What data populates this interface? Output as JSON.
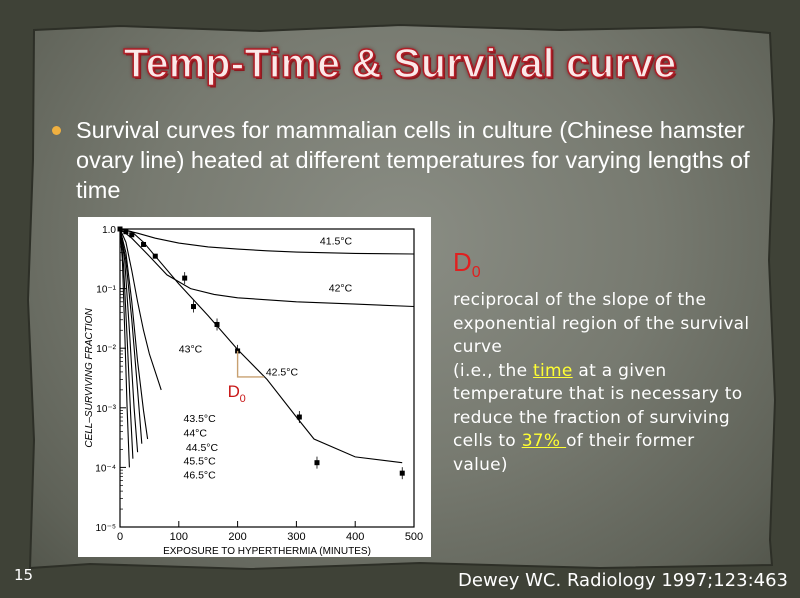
{
  "slide": {
    "title": "Temp-Time & Survival curve",
    "bullet": "Survival curves for mammalian cells in culture (Chinese hamster ovary line) heated at different temperatures for varying lengths of time",
    "page_number": "15",
    "citation": "Dewey WC. Radiology 1997;123:463"
  },
  "sidebar": {
    "d0_letter": "D",
    "d0_sub": "0",
    "line1": "reciprocal of the slope of the exponential region of the survival curve",
    "line2_pre": "(i.e., the ",
    "line2_hl": "time",
    "line2_post": " at a given temperature that is necessary to reduce the fraction of surviving cells to ",
    "line3_hl": "37% ",
    "line3_post": "of their former value)"
  },
  "colors": {
    "title_fill": "#fbe9e9",
    "title_outline": "#b11d26",
    "bullet": "#f0b040",
    "d0_red": "#e02020",
    "highlight": "#ffff33"
  },
  "chart_data": {
    "type": "line",
    "xlabel": "EXPOSURE TO HYPERTHERMIA (MINUTES)",
    "ylabel": "CELL–SURVIVING FRACTION",
    "xlim": [
      0,
      500
    ],
    "ylim": [
      1e-05,
      1
    ],
    "yscale": "log",
    "x_ticks": [
      0,
      100,
      200,
      300,
      400,
      500
    ],
    "y_ticks": [
      {
        "value": 1.0,
        "label": "1.0"
      },
      {
        "value": 0.1,
        "label": "10⁻¹"
      },
      {
        "value": 0.01,
        "label": "10⁻²"
      },
      {
        "value": 0.001,
        "label": "10⁻³"
      },
      {
        "value": 0.0001,
        "label": "10⁻⁴"
      },
      {
        "value": 1e-05,
        "label": "10⁻⁵"
      }
    ],
    "series": [
      {
        "name": "41.5°C",
        "x": [
          0,
          30,
          60,
          100,
          150,
          200,
          250,
          300,
          400,
          500
        ],
        "y": [
          1,
          0.85,
          0.7,
          0.58,
          0.5,
          0.46,
          0.43,
          0.41,
          0.39,
          0.38
        ],
        "label_at": [
          340,
          0.55
        ]
      },
      {
        "name": "42°C",
        "x": [
          0,
          20,
          50,
          80,
          120,
          160,
          200,
          300,
          400,
          500
        ],
        "y": [
          1,
          0.7,
          0.35,
          0.17,
          0.1,
          0.08,
          0.07,
          0.06,
          0.055,
          0.05
        ],
        "label_at": [
          355,
          0.09
        ]
      },
      {
        "name": "43°C",
        "x": [
          0,
          10,
          20,
          30,
          40,
          50,
          60,
          70
        ],
        "y": [
          1,
          0.6,
          0.2,
          0.06,
          0.02,
          0.008,
          0.004,
          0.002
        ],
        "label_at": [
          100,
          0.0085
        ]
      },
      {
        "name": "42.5°C",
        "x": [
          0,
          20,
          40,
          60,
          100,
          150,
          200,
          250,
          300,
          330,
          400,
          480
        ],
        "y": [
          1,
          0.9,
          0.6,
          0.35,
          0.12,
          0.035,
          0.0095,
          0.003,
          0.0007,
          0.0003,
          0.00015,
          0.00012
        ],
        "label_at": [
          248,
          0.0035
        ]
      },
      {
        "name": "43.5°C",
        "x": [
          0,
          10,
          20,
          30,
          40,
          47
        ],
        "y": [
          1,
          0.4,
          0.06,
          0.006,
          0.0009,
          0.0003
        ],
        "label_at": [
          108,
          0.00058
        ]
      },
      {
        "name": "44°C",
        "x": [
          0,
          10,
          20,
          30,
          37
        ],
        "y": [
          1,
          0.3,
          0.03,
          0.002,
          0.00025
        ],
        "label_at": [
          108,
          0.00033
        ]
      },
      {
        "name": "44.5°C",
        "x": [
          0,
          8,
          16,
          24,
          30
        ],
        "y": [
          1,
          0.3,
          0.02,
          0.001,
          0.00018
        ],
        "label_at": [
          112,
          0.00019
        ]
      },
      {
        "name": "45.5°C",
        "x": [
          0,
          6,
          12,
          18,
          22
        ],
        "y": [
          1,
          0.25,
          0.015,
          0.0008,
          0.00014
        ],
        "label_at": [
          108,
          0.000111
        ]
      },
      {
        "name": "46.5°C",
        "x": [
          0,
          4,
          8,
          12,
          16
        ],
        "y": [
          1,
          0.3,
          0.02,
          0.001,
          0.0001
        ],
        "label_at": [
          108,
          6.5e-05
        ]
      }
    ],
    "points_42_5": {
      "x": [
        0,
        10,
        20,
        40,
        60,
        110,
        125,
        165,
        200,
        305,
        335,
        480
      ],
      "y": [
        1.0,
        0.9,
        0.8,
        0.55,
        0.35,
        0.15,
        0.05,
        0.025,
        0.009,
        0.0007,
        0.00012,
        8e-05
      ]
    },
    "annotation": {
      "text_letter": "D",
      "text_sub": "0"
    }
  }
}
